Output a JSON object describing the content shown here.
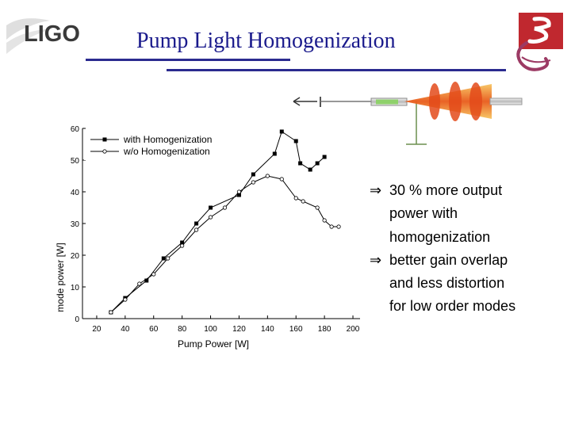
{
  "slide": {
    "logo_text": "LIGO",
    "title": "Pump Light Homogenization",
    "colors": {
      "title": "#1a1a8c",
      "rule": "#2b2b8f",
      "emblem": "#c0282f"
    }
  },
  "bullets": [
    {
      "icon": "implies-arrow",
      "symbol": "⇒",
      "lines": [
        "30 % more output",
        "power with",
        "homogenization"
      ]
    },
    {
      "icon": "implies-arrow",
      "symbol": "⇒",
      "lines": [
        "better gain overlap",
        "and less distortion",
        "for low order modes"
      ]
    }
  ],
  "chart_data": {
    "type": "line",
    "xlabel": "Pump Power [W]",
    "ylabel": "mode power [W]",
    "xlim": [
      10,
      205
    ],
    "ylim": [
      0,
      60
    ],
    "x_ticks": [
      20,
      40,
      60,
      80,
      100,
      120,
      140,
      160,
      180,
      200
    ],
    "y_ticks": [
      0,
      10,
      20,
      30,
      40,
      50,
      60
    ],
    "legend_position": "top-left",
    "series": [
      {
        "name": "with Homogenization",
        "marker": "filled-square",
        "points": [
          [
            30,
            2
          ],
          [
            40,
            6.5
          ],
          [
            55,
            12
          ],
          [
            67,
            19
          ],
          [
            80,
            24
          ],
          [
            90,
            30
          ],
          [
            100,
            35
          ],
          [
            120,
            39
          ],
          [
            130,
            45.5
          ],
          [
            145,
            52
          ],
          [
            150,
            59
          ],
          [
            160,
            56
          ],
          [
            163,
            49
          ],
          [
            170,
            47
          ],
          [
            175,
            49
          ],
          [
            180,
            51
          ]
        ]
      },
      {
        "name": "w/o Homogenization",
        "marker": "open-circle",
        "points": [
          [
            30,
            2
          ],
          [
            40,
            6
          ],
          [
            50,
            11
          ],
          [
            60,
            14
          ],
          [
            70,
            19
          ],
          [
            80,
            23
          ],
          [
            90,
            28
          ],
          [
            100,
            32
          ],
          [
            110,
            35
          ],
          [
            120,
            40
          ],
          [
            130,
            43
          ],
          [
            140,
            45
          ],
          [
            150,
            44
          ],
          [
            160,
            38
          ],
          [
            165,
            37
          ],
          [
            175,
            35
          ],
          [
            180,
            31
          ],
          [
            185,
            29
          ],
          [
            190,
            29
          ]
        ]
      }
    ]
  }
}
